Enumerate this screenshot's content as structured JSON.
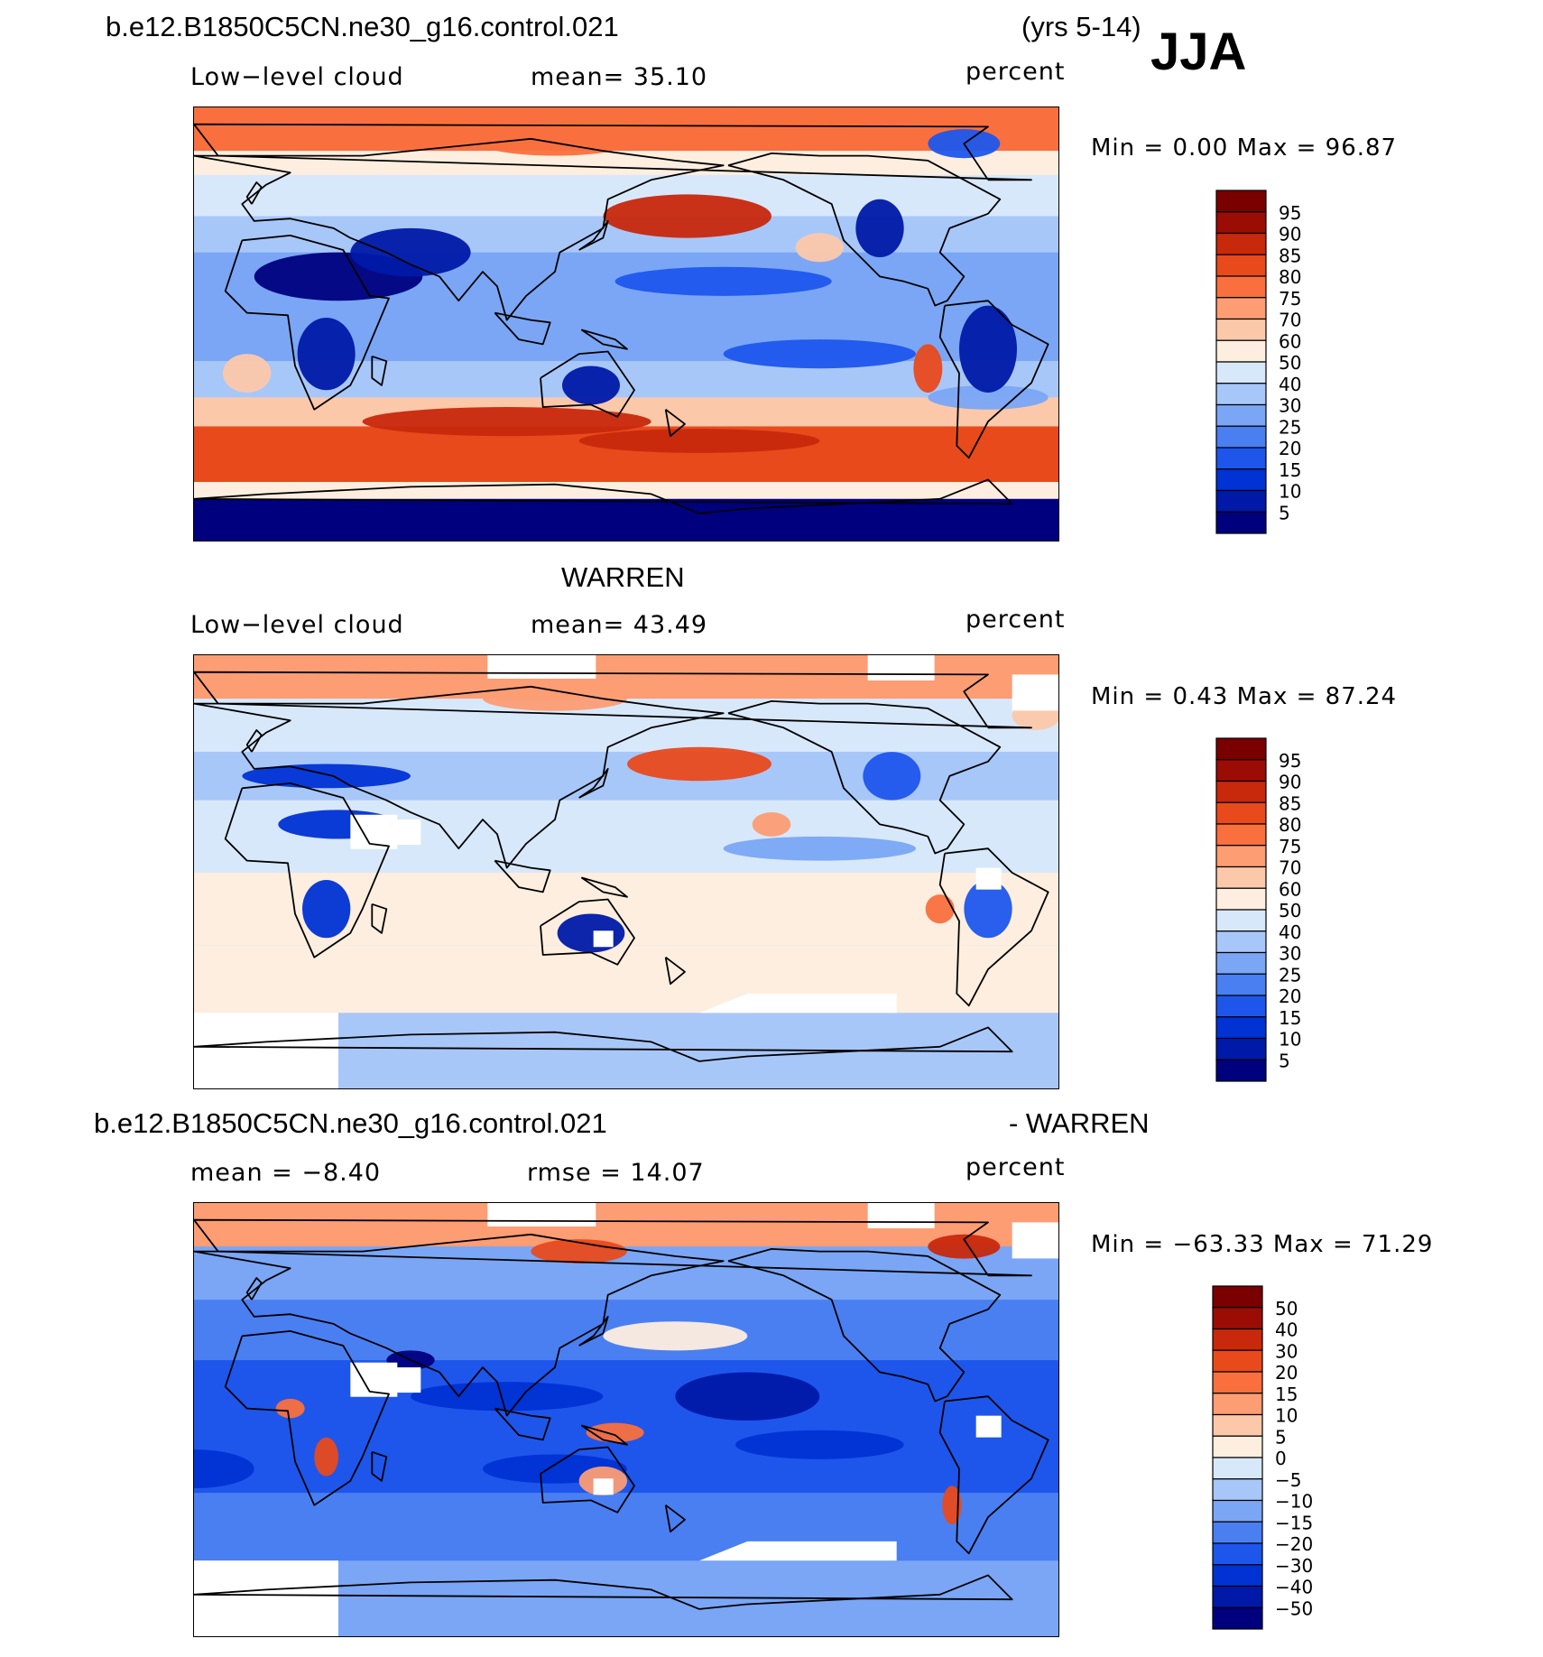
{
  "header": {
    "case_name": "b.e12.B1850C5CN.ne30_g16.control.021",
    "years": "(yrs 5-14)",
    "season": "JJA"
  },
  "panels": [
    {
      "id": "model",
      "left_label": "Low−level cloud",
      "center_label": "mean=   35.10",
      "right_label": "percent",
      "minmax": "Min  =     0.00  Max  =    96.87",
      "colorbar_labels": [
        "95",
        "90",
        "85",
        "80",
        "75",
        "70",
        "60",
        "50",
        "40",
        "30",
        "25",
        "20",
        "15",
        "10",
        "5"
      ]
    },
    {
      "id": "obs",
      "title": "WARREN",
      "left_label": "Low−level cloud",
      "center_label": "mean=   43.49",
      "right_label": "percent",
      "minmax": "Min  =     0.43  Max  =    87.24",
      "colorbar_labels": [
        "95",
        "90",
        "85",
        "80",
        "75",
        "70",
        "60",
        "50",
        "40",
        "30",
        "25",
        "20",
        "15",
        "10",
        "5"
      ]
    },
    {
      "id": "diff",
      "title_left": "b.e12.B1850C5CN.ne30_g16.control.021",
      "title_right": "- WARREN",
      "left_label": "mean  =   −8.40",
      "center_label": "rmse  =    14.07",
      "right_label": "percent",
      "minmax": "Min  =  −63.33  Max  =    71.29",
      "colorbar_labels": [
        "50",
        "40",
        "30",
        "20",
        "15",
        "10",
        "5",
        "0",
        "−5",
        "−10",
        "−15",
        "−20",
        "−30",
        "−40",
        "−50"
      ]
    }
  ],
  "chart_data": [
    {
      "type": "heatmap",
      "title": "Low−level cloud",
      "units": "percent",
      "mean": 35.1,
      "min": 0.0,
      "max": 96.87,
      "levels": [
        5,
        10,
        15,
        20,
        25,
        30,
        40,
        50,
        60,
        70,
        75,
        80,
        85,
        90,
        95
      ],
      "palette": [
        "#00007f",
        "#0019a8",
        "#0032d4",
        "#1e56ec",
        "#4a7ff2",
        "#7aa6f5",
        "#a8c7f9",
        "#d8e8fb",
        "#fdeedf",
        "#fcc8aa",
        "#fc9d74",
        "#f9703e",
        "#e84a1c",
        "#c8280c",
        "#9b0c05",
        "#7a0000"
      ]
    },
    {
      "type": "heatmap",
      "title": "WARREN",
      "units": "percent",
      "mean": 43.49,
      "min": 0.43,
      "max": 87.24,
      "levels": [
        5,
        10,
        15,
        20,
        25,
        30,
        40,
        50,
        60,
        70,
        75,
        80,
        85,
        90,
        95
      ],
      "palette": [
        "#00007f",
        "#0019a8",
        "#0032d4",
        "#1e56ec",
        "#4a7ff2",
        "#7aa6f5",
        "#a8c7f9",
        "#d8e8fb",
        "#fdeedf",
        "#fcc8aa",
        "#fc9d74",
        "#f9703e",
        "#e84a1c",
        "#c8280c",
        "#9b0c05",
        "#7a0000"
      ]
    },
    {
      "type": "heatmap",
      "title": "b.e12.B1850C5CN.ne30_g16.control.021 - WARREN",
      "units": "percent",
      "mean": -8.4,
      "rmse": 14.07,
      "min": -63.33,
      "max": 71.29,
      "levels": [
        -50,
        -40,
        -30,
        -20,
        -15,
        -10,
        -5,
        0,
        5,
        10,
        15,
        20,
        30,
        40,
        50
      ],
      "palette": [
        "#00007f",
        "#0019a8",
        "#0032d4",
        "#1e56ec",
        "#4a7ff2",
        "#7aa6f5",
        "#a8c7f9",
        "#d8e8fb",
        "#fdeedf",
        "#fcc8aa",
        "#fc9d74",
        "#f9703e",
        "#e84a1c",
        "#c8280c",
        "#9b0c05",
        "#7a0000"
      ]
    }
  ]
}
